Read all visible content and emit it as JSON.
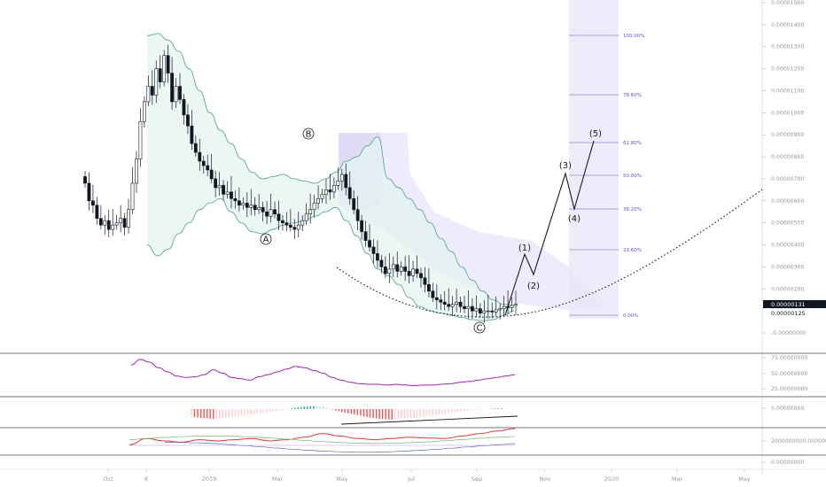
{
  "chart_data": {
    "type": "candlestick",
    "price_axis": {
      "ticks": [
        "0.00001500",
        "0.00001400",
        "0.00001300",
        "0.00001200",
        "0.00001100",
        "0.00001000",
        "0.00000900",
        "0.00000800",
        "0.00000700",
        "0.00000600",
        "0.00000500",
        "0.00000400",
        "0.00000300",
        "0.00000200",
        "0.00000100",
        "-0.00000000"
      ],
      "ylim": [
        -1e-07,
        1.5e-05
      ],
      "last_price": "0.00000131",
      "last_price_2": "0.00000125"
    },
    "time_axis": {
      "labels": [
        "Oct",
        "6",
        "2019",
        "Mar",
        "May",
        "Jul",
        "Sep",
        "Nov",
        "2020",
        "Mar",
        "May"
      ]
    },
    "candles_close": [
      6.8,
      6.0,
      5.8,
      5.2,
      4.9,
      5.1,
      4.7,
      4.9,
      5.0,
      5.2,
      4.8,
      5.6,
      6.8,
      7.9,
      9.6,
      10.5,
      11.2,
      10.8,
      12.0,
      11.4,
      12.6,
      11.8,
      10.5,
      11.2,
      10.6,
      9.9,
      9.4,
      8.6,
      8.2,
      7.8,
      7.6,
      7.4,
      7.0,
      6.6,
      6.7,
      6.3,
      6.4,
      6.1,
      6.0,
      5.8,
      5.9,
      5.7,
      5.8,
      5.6,
      5.7,
      5.5,
      5.3,
      5.6,
      5.4,
      5.1,
      5.0,
      4.9,
      4.8,
      4.7,
      4.9,
      5.1,
      5.4,
      5.6,
      5.9,
      6.1,
      6.3,
      6.5,
      6.4,
      6.7,
      6.9,
      7.2,
      6.6,
      6.1,
      5.6,
      5.1,
      4.6,
      4.2,
      3.9,
      3.6,
      3.3,
      3.0,
      2.7,
      2.9,
      3.1,
      2.8,
      3.0,
      2.8,
      2.6,
      2.9,
      2.7,
      2.5,
      2.2,
      1.9,
      1.6,
      1.5,
      1.4,
      1.3,
      1.2,
      1.3,
      1.4,
      1.2,
      1.1,
      1.2,
      1.0,
      1.1,
      0.9,
      1.0,
      1.0,
      0.95,
      1.05,
      1.1,
      1.2,
      1.15,
      1.25,
      1.31
    ],
    "bollinger": {
      "upper": [
        13.5,
        13.6,
        13.3,
        12.8,
        12.0,
        11.0,
        10.0,
        9.2,
        8.6,
        7.9,
        7.3,
        7.0,
        7.1,
        7.2,
        7.0,
        6.9,
        6.8,
        7.0,
        7.3,
        7.8,
        8.0,
        8.5,
        8.9,
        7.0,
        6.6,
        6.1,
        5.6,
        5.0,
        4.3,
        3.7,
        3.0,
        2.4,
        1.9,
        1.5,
        1.3,
        1.25
      ],
      "lower": [
        4.0,
        3.5,
        3.8,
        4.5,
        5.0,
        5.6,
        5.9,
        6.1,
        5.5,
        5.0,
        4.6,
        4.5,
        4.7,
        4.9,
        5.0,
        5.1,
        5.3,
        5.5,
        5.7,
        5.1,
        4.4,
        3.6,
        2.9,
        2.6,
        2.2,
        1.6,
        1.2,
        1.0,
        0.9,
        0.8,
        0.7,
        0.6,
        0.55,
        0.6,
        0.8,
        1.0
      ]
    },
    "elliott_waves": {
      "corrective_labels": [
        "A",
        "B",
        "C"
      ],
      "impulse_labels": [
        "(1)",
        "(2)",
        "(3)",
        "(4)",
        "(5)"
      ]
    },
    "fibonacci_levels": [
      "100.00%",
      "78.60%",
      "61.80%",
      "50.00%",
      "38.20%",
      "23.60%",
      "0.00%"
    ],
    "indicator_axes": {
      "rsi_ticks": [
        "75.00000000",
        "50.00000000",
        "25.00000000"
      ],
      "macd_ticks": [
        "0.00000000"
      ],
      "vol_ticks": [
        "2000000000.00000000"
      ],
      "last_ticks": [
        "0.00000000"
      ]
    },
    "series": [
      {
        "values": [
          62,
          70,
          66,
          58,
          52,
          46,
          44,
          45,
          48,
          55,
          50,
          44,
          42,
          40,
          45,
          48,
          52,
          56,
          60,
          58,
          54,
          50,
          44,
          40,
          37,
          35,
          34,
          34,
          33,
          34,
          33,
          32,
          33,
          33,
          34,
          35,
          37,
          38,
          40,
          42,
          44,
          46,
          48
        ]
      },
      {
        "values": [
          -10,
          -12,
          -13,
          -12,
          -10,
          -8,
          -6,
          -4,
          -2,
          1,
          3,
          4,
          3,
          -2,
          -5,
          -8,
          -11,
          -13,
          -14,
          -13,
          -12,
          -10,
          -8,
          -6,
          -4,
          -2,
          -1,
          0.5,
          1
        ]
      },
      {
        "values": [
          0.35,
          0.6,
          0.5,
          0.45,
          0.55,
          0.5,
          0.55,
          0.6,
          0.5,
          0.55,
          0.65,
          0.8,
          0.7,
          0.6,
          0.55,
          0.6,
          0.65,
          0.62,
          0.6,
          0.7,
          0.8,
          0.9,
          1.0
        ]
      }
    ]
  }
}
